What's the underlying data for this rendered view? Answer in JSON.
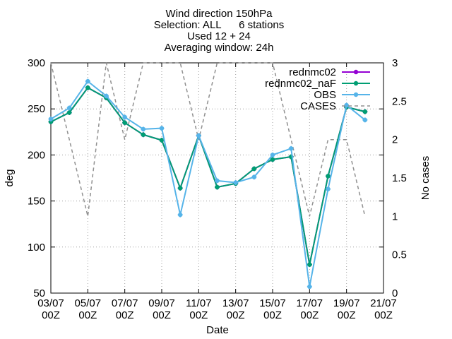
{
  "chart_data": {
    "type": "line",
    "title_lines": [
      "Wind direction 150hPa",
      "Selection: ALL      6 stations",
      "Used 12 + 24",
      "Averaging window: 24h"
    ],
    "xlabel": "Date",
    "ylabel": "deg",
    "y2label": "No cases",
    "ylim": [
      50,
      300
    ],
    "y2lim": [
      0,
      3
    ],
    "yticks": [
      "50",
      "100",
      "150",
      "200",
      "250",
      "300"
    ],
    "y2ticks": [
      "0",
      "0.5",
      "1",
      "1.5",
      "2",
      "2.5",
      "3"
    ],
    "xticks": [
      [
        "03/07",
        "00Z"
      ],
      [
        "05/07",
        "00Z"
      ],
      [
        "07/07",
        "00Z"
      ],
      [
        "09/07",
        "00Z"
      ],
      [
        "11/07",
        "00Z"
      ],
      [
        "13/07",
        "00Z"
      ],
      [
        "15/07",
        "00Z"
      ],
      [
        "17/07",
        "00Z"
      ],
      [
        "19/07",
        "00Z"
      ],
      [
        "21/07",
        "00Z"
      ]
    ],
    "x": [
      "03/07 00Z",
      "04/07 00Z",
      "05/07 00Z",
      "06/07 00Z",
      "07/07 00Z",
      "08/07 00Z",
      "09/07 00Z",
      "10/07 00Z",
      "11/07 00Z",
      "12/07 00Z",
      "13/07 00Z",
      "14/07 00Z",
      "15/07 00Z",
      "16/07 00Z",
      "17/07 00Z",
      "18/07 00Z",
      "19/07 00Z",
      "20/07 00Z"
    ],
    "grid": true,
    "legend_position": "top-right",
    "series": [
      {
        "name": "rednmc02",
        "color": "#9400d3",
        "style": "solid-marker",
        "values": [
          236,
          246,
          273,
          262,
          235,
          222,
          216,
          164,
          221,
          165,
          169,
          185,
          195,
          198,
          81,
          177,
          252,
          247
        ]
      },
      {
        "name": "rednmc02_naF",
        "color": "#009e73",
        "style": "solid-marker",
        "values": [
          236,
          246,
          273,
          262,
          235,
          222,
          216,
          164,
          221,
          165,
          169,
          185,
          195,
          198,
          81,
          177,
          252,
          247
        ]
      },
      {
        "name": "OBS",
        "color": "#56b4e9",
        "style": "solid-marker",
        "values": [
          239,
          251,
          280,
          264,
          241,
          228,
          229,
          135,
          221,
          172,
          170,
          176,
          200,
          207,
          57,
          163,
          254,
          238
        ]
      },
      {
        "name": "CASES",
        "color": "#909090",
        "style": "dashed",
        "axis": "y2",
        "values": [
          3,
          2,
          1,
          3,
          2,
          3,
          3,
          3,
          2,
          3,
          3,
          3,
          3,
          2,
          1,
          2,
          2,
          1
        ]
      }
    ]
  }
}
